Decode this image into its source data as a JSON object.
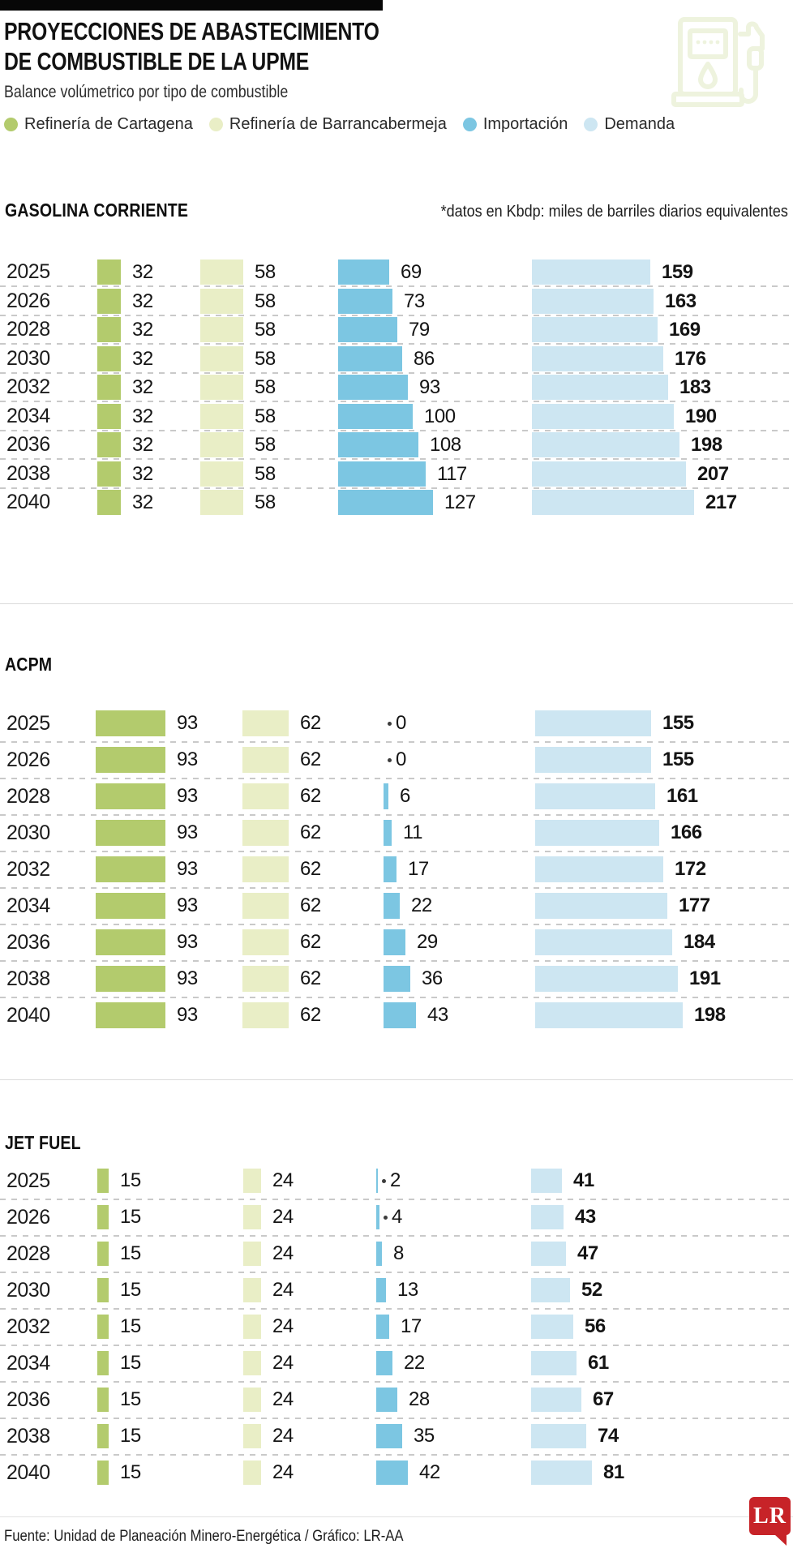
{
  "header": {
    "title_line1": "PROYECCIONES DE ABASTECIMIENTO",
    "title_line2": "DE COMBUSTIBLE DE LA UPME",
    "subtitle": "Balance volúmetrico por tipo de combustible"
  },
  "legend": [
    {
      "label": "Refinería de Cartagena",
      "color": "#b3cb6d"
    },
    {
      "label": "Refinería de Barrancabermeja",
      "color": "#e9eec6"
    },
    {
      "label": "Importación",
      "color": "#7cc6e2"
    },
    {
      "label": "Demanda",
      "color": "#cde6f2"
    }
  ],
  "note": "*datos en Kbdp: miles de barriles diarios equivalentes",
  "chart_data": [
    {
      "type": "bar",
      "orientation": "horizontal",
      "title": "GASOLINA CORRIENTE",
      "unit": "Kbdp",
      "categories": [
        "2025",
        "2026",
        "2028",
        "2030",
        "2032",
        "2034",
        "2036",
        "2038",
        "2040"
      ],
      "series": [
        {
          "name": "Refinería de Cartagena",
          "values": [
            32,
            32,
            32,
            32,
            32,
            32,
            32,
            32,
            32
          ]
        },
        {
          "name": "Refinería de Barrancabermeja",
          "values": [
            58,
            58,
            58,
            58,
            58,
            58,
            58,
            58,
            58
          ]
        },
        {
          "name": "Importación",
          "values": [
            69,
            73,
            79,
            86,
            93,
            100,
            108,
            117,
            127
          ]
        },
        {
          "name": "Demanda",
          "values": [
            159,
            163,
            169,
            176,
            183,
            190,
            198,
            207,
            217
          ]
        }
      ]
    },
    {
      "type": "bar",
      "orientation": "horizontal",
      "title": "ACPM",
      "unit": "Kbdp",
      "categories": [
        "2025",
        "2026",
        "2028",
        "2030",
        "2032",
        "2034",
        "2036",
        "2038",
        "2040"
      ],
      "series": [
        {
          "name": "Refinería de Cartagena",
          "values": [
            93,
            93,
            93,
            93,
            93,
            93,
            93,
            93,
            93
          ]
        },
        {
          "name": "Refinería de Barrancabermeja",
          "values": [
            62,
            62,
            62,
            62,
            62,
            62,
            62,
            62,
            62
          ]
        },
        {
          "name": "Importación",
          "values": [
            0,
            0,
            6,
            11,
            17,
            22,
            29,
            36,
            43
          ]
        },
        {
          "name": "Demanda",
          "values": [
            155,
            155,
            161,
            166,
            172,
            177,
            184,
            191,
            198
          ]
        }
      ]
    },
    {
      "type": "bar",
      "orientation": "horizontal",
      "title": "JET FUEL",
      "unit": "Kbdp",
      "categories": [
        "2025",
        "2026",
        "2028",
        "2030",
        "2032",
        "2034",
        "2036",
        "2038",
        "2040"
      ],
      "series": [
        {
          "name": "Refinería de Cartagena",
          "values": [
            15,
            15,
            15,
            15,
            15,
            15,
            15,
            15,
            15
          ]
        },
        {
          "name": "Refinería de Barrancabermeja",
          "values": [
            24,
            24,
            24,
            24,
            24,
            24,
            24,
            24,
            24
          ]
        },
        {
          "name": "Importación",
          "values": [
            2,
            4,
            8,
            13,
            17,
            22,
            28,
            35,
            42
          ]
        },
        {
          "name": "Demanda",
          "values": [
            41,
            43,
            47,
            52,
            56,
            61,
            67,
            74,
            81
          ]
        }
      ]
    }
  ],
  "footer": {
    "source": "Fuente: Unidad de Planeación Minero-Energética / Gráfico: LR-AA",
    "logo_text": "LR"
  }
}
